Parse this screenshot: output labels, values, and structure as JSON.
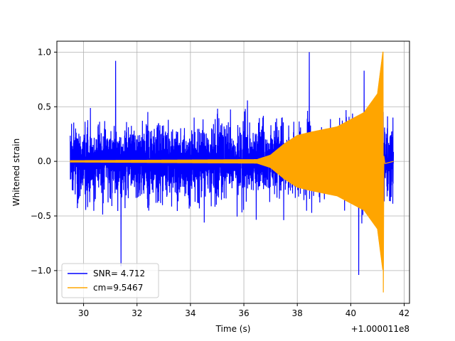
{
  "chart_data": {
    "type": "line",
    "xlabel": "Time (s)",
    "ylabel": "Whitened strain",
    "x_offset_label": "+1.000011e8",
    "xlim": [
      29.0,
      42.2
    ],
    "ylim": [
      -1.3,
      1.1
    ],
    "x_ticks": [
      30,
      32,
      34,
      36,
      38,
      40,
      42
    ],
    "y_ticks": [
      -1.0,
      -0.5,
      0.0,
      0.5,
      1.0
    ],
    "x_tick_labels": [
      "30",
      "32",
      "34",
      "36",
      "38",
      "40",
      "42"
    ],
    "y_tick_labels": [
      "−1.0",
      "−0.5",
      "0.0",
      "0.5",
      "1.0"
    ],
    "grid": true,
    "legend_position": "lower-left",
    "series": [
      {
        "name": "SNR= 4.712",
        "color": "#0000ff",
        "description_kind": "noise",
        "x_range": [
          29.5,
          41.6
        ],
        "typical_amplitude": 0.5,
        "peak_max": 1.0,
        "peak_min": -1.04,
        "notable_points": [
          {
            "x": 31.2,
            "y": 0.92
          },
          {
            "x": 31.4,
            "y": -0.96
          },
          {
            "x": 38.45,
            "y": 1.0
          },
          {
            "x": 40.3,
            "y": -1.04
          },
          {
            "x": 40.5,
            "y": 0.83
          }
        ]
      },
      {
        "name": "cm=9.5467",
        "color": "#ffa500",
        "description_kind": "chirp",
        "x_range": [
          29.5,
          41.6
        ],
        "envelope": [
          {
            "x": 29.5,
            "y": 0.01
          },
          {
            "x": 36.5,
            "y": 0.02
          },
          {
            "x": 37.0,
            "y": 0.06
          },
          {
            "x": 37.5,
            "y": 0.16
          },
          {
            "x": 38.0,
            "y": 0.24
          },
          {
            "x": 38.5,
            "y": 0.27
          },
          {
            "x": 39.5,
            "y": 0.32
          },
          {
            "x": 40.5,
            "y": 0.45
          },
          {
            "x": 41.0,
            "y": 0.62
          },
          {
            "x": 41.2,
            "y": 1.0
          }
        ],
        "peak_max": 1.0,
        "peak_min": -1.2
      }
    ]
  }
}
